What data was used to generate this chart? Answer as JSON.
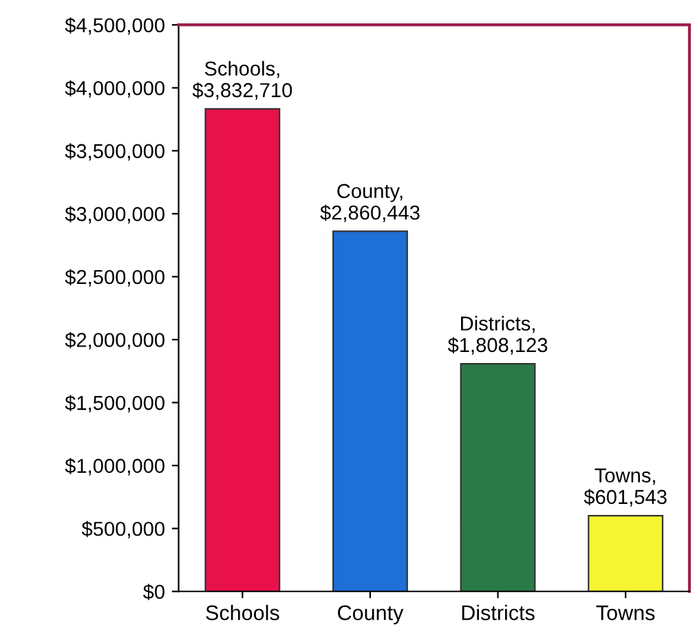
{
  "chart_data": {
    "type": "bar",
    "categories": [
      "Schools",
      "County",
      "Districts",
      "Towns"
    ],
    "values": [
      3832710,
      2860443,
      1808123,
      601543
    ],
    "colors": [
      "#e8114a",
      "#1e6fd6",
      "#2a7a48",
      "#f5f532"
    ],
    "value_labels": [
      "Schools,\n$3,832,710",
      "County,\n$2,860,443",
      "Districts,\n$1,808,123",
      "Towns,\n$601,543"
    ],
    "ylim": [
      0,
      4500000
    ],
    "yticks": [
      {
        "value": 0,
        "label": "$0"
      },
      {
        "value": 500000,
        "label": "$500,000"
      },
      {
        "value": 1000000,
        "label": "$1,000,000"
      },
      {
        "value": 1500000,
        "label": "$1,500,000"
      },
      {
        "value": 2000000,
        "label": "$2,000,000"
      },
      {
        "value": 2500000,
        "label": "$2,500,000"
      },
      {
        "value": 3000000,
        "label": "$3,000,000"
      },
      {
        "value": 3500000,
        "label": "$3,500,000"
      },
      {
        "value": 4000000,
        "label": "$4,000,000"
      },
      {
        "value": 4500000,
        "label": "$4,500,000"
      }
    ],
    "grid": false,
    "legend": false
  }
}
